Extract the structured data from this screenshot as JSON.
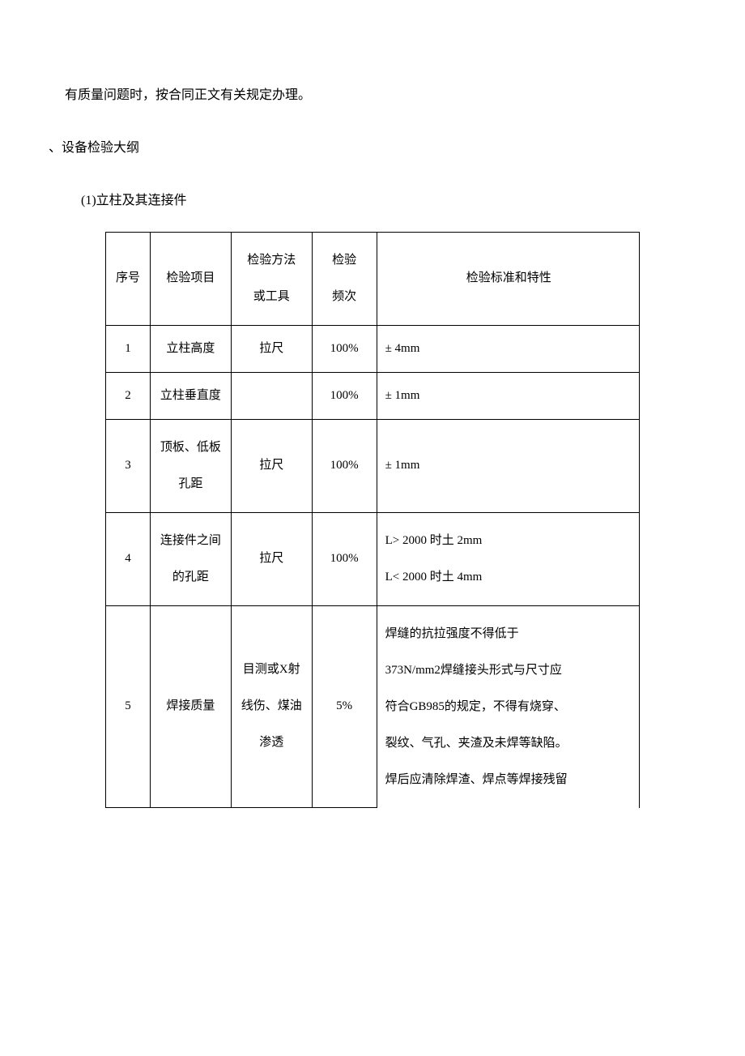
{
  "paragraphs": {
    "intro": "有质量问题时，按合同正文有关规定办理。",
    "section_title": "、设备检验大纲",
    "subsection_title": "(1)立柱及其连接件"
  },
  "table": {
    "headers": {
      "seq": "序号",
      "item": "检验项目",
      "method_line1": "检验方法",
      "method_line2": "或工具",
      "freq_line1": "检验",
      "freq_line2": "频次",
      "standard": "检验标准和特性"
    },
    "rows": [
      {
        "seq": "1",
        "item": "立柱高度",
        "method": "拉尺",
        "freq": "100%",
        "standard": "± 4mm"
      },
      {
        "seq": "2",
        "item": "立柱垂直度",
        "method": "",
        "freq": "100%",
        "standard": "± 1mm"
      },
      {
        "seq": "3",
        "item_line1": "顶板、低板",
        "item_line2": "孔距",
        "method": "拉尺",
        "freq": "100%",
        "standard": "± 1mm"
      },
      {
        "seq": "4",
        "item_line1": "连接件之间",
        "item_line2": "的孔距",
        "method": "拉尺",
        "freq": "100%",
        "standard_line1": "L> 2000 时土 2mm",
        "standard_line2": "L< 2000 时土 4mm"
      },
      {
        "seq": "5",
        "item": "焊接质量",
        "method_line1": "目测或X射",
        "method_line2": "线伤、煤油",
        "method_line3": "渗透",
        "freq": "5%",
        "standard_line1": "焊缝的抗拉强度不得低于",
        "standard_line2": "373N/mm2焊缝接头形式与尺寸应",
        "standard_line3": "符合GB985的规定，不得有烧穿、",
        "standard_line4": "裂纹、气孔、夹渣及未焊等缺陷。",
        "standard_line5": "焊后应清除焊渣、焊点等焊接残留"
      }
    ]
  }
}
